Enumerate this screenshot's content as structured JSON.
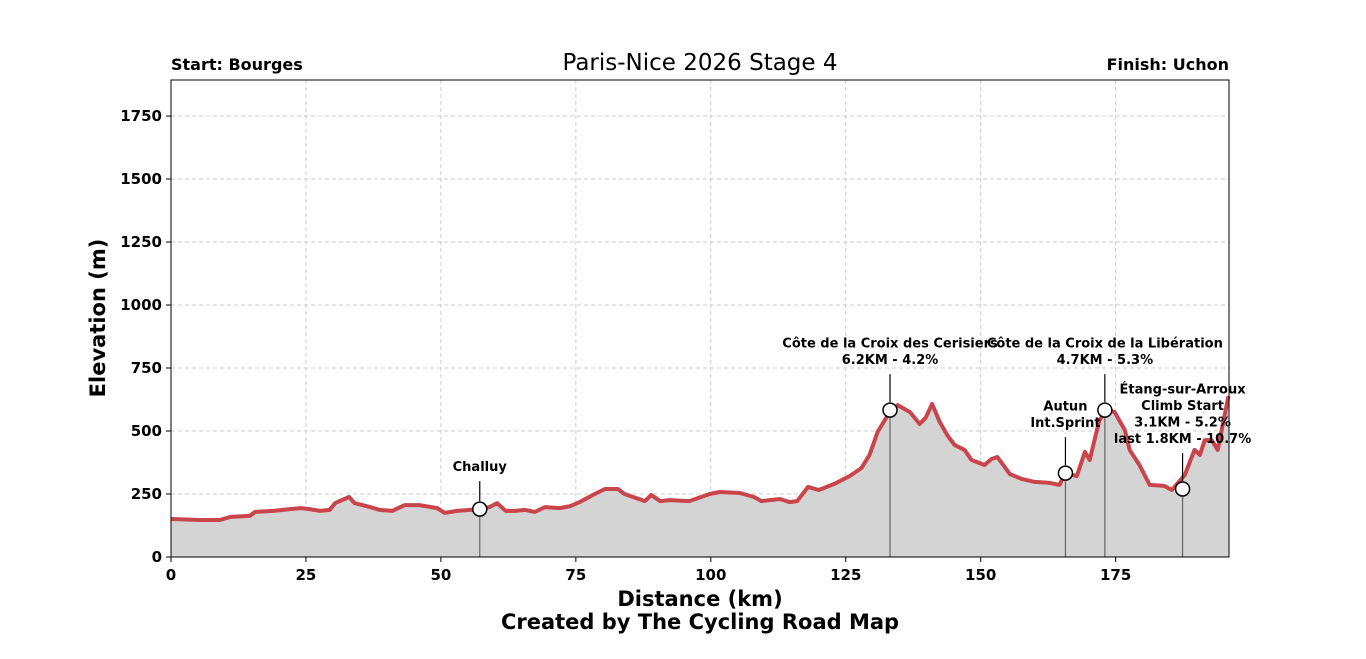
{
  "chart_data": {
    "type": "area",
    "title": "Paris-Nice 2026 Stage 4",
    "start_label": "Start: Bourges",
    "finish_label": "Finish: Uchon",
    "xlabel": "Distance (km)",
    "ylabel": "Elevation (m)",
    "credit": "Created by The Cycling Road Map",
    "xlim": [
      0,
      196
    ],
    "ylim": [
      0,
      1893
    ],
    "xticks": [
      0,
      25,
      50,
      75,
      100,
      125,
      150,
      175
    ],
    "yticks": [
      0,
      250,
      500,
      750,
      1000,
      1250,
      1500,
      1750
    ],
    "grid": true,
    "line_color": "#c9444b",
    "fill_color": "#d4d4d4",
    "x": [
      0,
      5.4,
      9,
      11,
      14.6,
      15.6,
      19,
      22,
      24,
      25.7,
      27.6,
      29.4,
      30.4,
      33,
      34,
      36.9,
      38.7,
      41,
      43.3,
      46,
      49.3,
      50.7,
      53,
      57.2,
      59,
      60.4,
      62,
      63.7,
      65.6,
      67.4,
      69.3,
      72,
      74,
      75.7,
      78.5,
      80.4,
      82.8,
      84,
      87.8,
      89,
      90.6,
      92.4,
      96,
      99.8,
      101.7,
      105.4,
      108,
      109.4,
      112.8,
      114.6,
      116,
      118,
      120,
      122.9,
      125.7,
      127.9,
      129.4,
      130.9,
      132.8,
      134.6,
      136.9,
      138.7,
      139.8,
      141,
      142.4,
      143.9,
      145.2,
      147,
      148.3,
      150.7,
      152,
      153.1,
      155.4,
      157.6,
      160,
      162.8,
      164.6,
      165.7,
      167.8,
      169.3,
      170.2,
      172,
      173.5,
      174.8,
      176.7,
      177.6,
      179.4,
      181.3,
      184,
      185.4,
      187.8,
      189.6,
      190.6,
      191.5,
      192.8,
      193.9,
      195.9
    ],
    "y": [
      151,
      147,
      147,
      159,
      163,
      179,
      183,
      190,
      194,
      190,
      183,
      187,
      214,
      238,
      214,
      198,
      187,
      183,
      206,
      206,
      194,
      175,
      183,
      190,
      198,
      214,
      183,
      183,
      187,
      179,
      198,
      194,
      202,
      218,
      250,
      270,
      270,
      250,
      222,
      246,
      222,
      226,
      222,
      250,
      258,
      254,
      238,
      222,
      230,
      218,
      222,
      278,
      266,
      290,
      321,
      353,
      405,
      496,
      563,
      603,
      575,
      528,
      552,
      607,
      536,
      480,
      444,
      425,
      385,
      365,
      389,
      397,
      329,
      310,
      298,
      294,
      286,
      333,
      321,
      417,
      385,
      544,
      583,
      575,
      504,
      425,
      365,
      286,
      282,
      266,
      325,
      425,
      405,
      464,
      464,
      425,
      639
    ],
    "annotations": [
      {
        "lines": [
          "Challuy"
        ],
        "x": 57.2,
        "y": 190
      },
      {
        "lines": [
          "Côte de la Croix des Cerisiers",
          "6.2KM - 4.2%"
        ],
        "x": 133.2,
        "y": 583
      },
      {
        "lines": [
          "Autun",
          "Int.Sprint"
        ],
        "x": 165.7,
        "y": 333
      },
      {
        "lines": [
          "Côte de la Croix de la Libération",
          "4.7KM - 5.3%"
        ],
        "x": 173.0,
        "y": 583
      },
      {
        "lines": [
          "Étang-sur-Arroux",
          "Climb Start",
          "3.1KM - 5.2%",
          "last 1.8KM - 10.7%"
        ],
        "x": 187.4,
        "y": 270
      }
    ]
  }
}
